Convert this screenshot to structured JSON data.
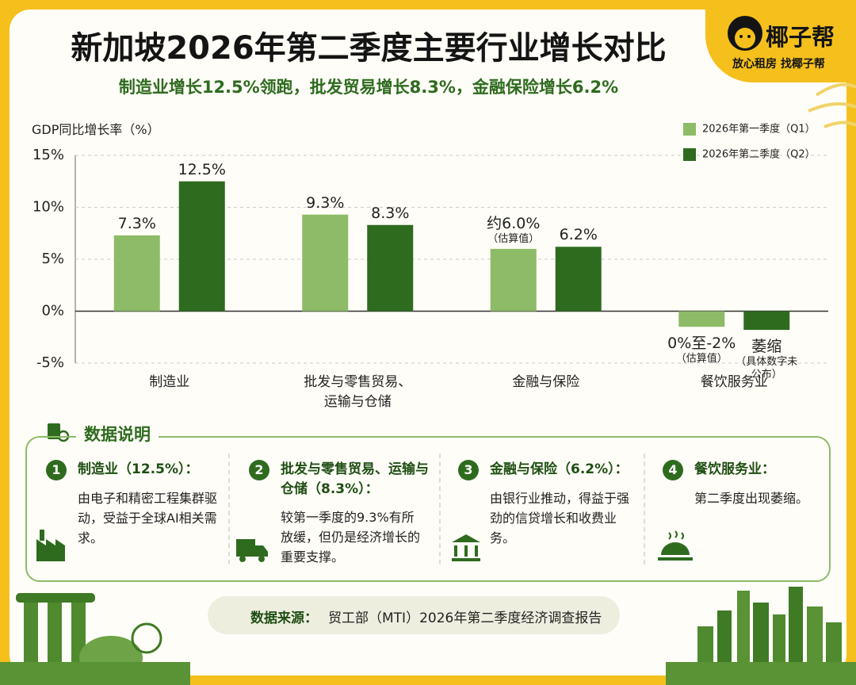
{
  "chart_data": {
    "type": "bar",
    "title": "新加坡2026年第二季度主要行业增长对比",
    "subtitle": "制造业增长12.5%领跑，批发贸易增长8.3%，金融保险增长6.2%",
    "y_label": "GDP同比增长率（%）",
    "categories": [
      "制造业",
      "批发与零售贸易、运输与仓储",
      "金融与保险",
      "餐饮服务业"
    ],
    "series": [
      {
        "name": "2026年第一季度（Q1）",
        "color": "#8dbb67",
        "values": [
          7.3,
          9.3,
          6.0,
          -1.5
        ],
        "value_labels": [
          "7.3%",
          "9.3%",
          "约6.0%",
          "0%至-2%"
        ],
        "value_notes": [
          null,
          null,
          "（估算值）",
          "（估算值）"
        ]
      },
      {
        "name": "2026年第二季度（Q2）",
        "color": "#2e6b1f",
        "values": [
          12.5,
          8.3,
          6.2,
          -1.8
        ],
        "value_labels": [
          "12.5%",
          "8.3%",
          "6.2%",
          "萎缩"
        ],
        "value_notes": [
          null,
          null,
          null,
          "（具体数字未公布）"
        ]
      }
    ],
    "ylim": [
      -5,
      15
    ],
    "yticks": [
      {
        "value": -5,
        "label": "-5%"
      },
      {
        "value": 0,
        "label": "0%"
      },
      {
        "value": 5,
        "label": "5%"
      },
      {
        "value": 10,
        "label": "10%"
      },
      {
        "value": 15,
        "label": "15%"
      }
    ],
    "grid": true,
    "legend": "top-right"
  },
  "brand": {
    "name": "椰子帮",
    "slogan": "放心租房  找椰子帮"
  },
  "notes": {
    "title": "数据说明",
    "items": [
      {
        "number": "1",
        "title": "制造业（12.5%）：",
        "text": "由电子和精密工程集群驱动，受益于全球AI相关需求。"
      },
      {
        "number": "2",
        "title": "批发与零售贸易、运输与仓储（8.3%）：",
        "text": "较第一季度的9.3%有所放缓，但仍是经济增长的重要支撑。"
      },
      {
        "number": "3",
        "title": "金融与保险（6.2%）：",
        "text": "由银行业推动，得益于强劲的信贷增长和收费业务。"
      },
      {
        "number": "4",
        "title": "餐饮服务业：",
        "text": "第二季度出现萎缩。"
      }
    ]
  },
  "source": {
    "label": "数据来源：",
    "text": "贸工部（MTI）2026年第二季度经济调查报告"
  }
}
